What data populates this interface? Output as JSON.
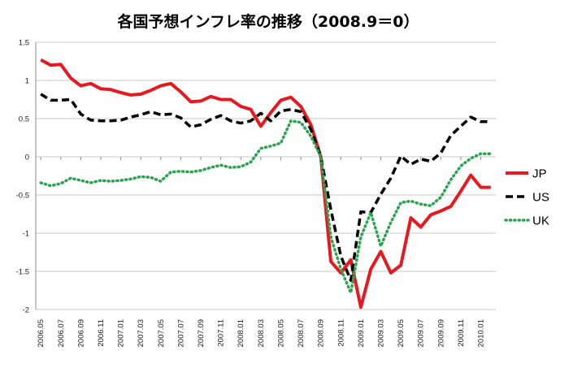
{
  "chart_data": {
    "type": "line",
    "title": "各国予想インフレ率の推移（2008.9＝0）",
    "xlabel": "",
    "ylabel": "",
    "ylim": [
      -2,
      1.5
    ],
    "yticks": [
      1.5,
      1,
      0.5,
      0,
      -0.5,
      -1,
      -1.5,
      -2
    ],
    "grid": "horizontal",
    "legend_position": "right",
    "x": [
      "2006.05",
      "2006.06",
      "2006.07",
      "2006.08",
      "2006.09",
      "2006.10",
      "2006.11",
      "2006.12",
      "2007.01",
      "2007.02",
      "2007.03",
      "2007.04",
      "2007.05",
      "2007.06",
      "2007.07",
      "2007.08",
      "2007.09",
      "2007.10",
      "2007.11",
      "2007.12",
      "2008.01",
      "2008.02",
      "2008.03",
      "2008.04",
      "2008.05",
      "2008.06",
      "2008.07",
      "2008.08",
      "2008.09",
      "2008.10",
      "2008.11",
      "2008.12",
      "2009.01",
      "2009.02",
      "2009.03",
      "2009.04",
      "2009.05",
      "2009.06",
      "2009.07",
      "2009.08",
      "2009.09",
      "2009.10",
      "2009.11",
      "2009.12",
      "2010.01",
      "2010.02"
    ],
    "x_tick_labels": [
      "2006.05",
      "2006.07",
      "2006.09",
      "2006.11",
      "2007.01",
      "2007.03",
      "2007.05",
      "2007.07",
      "2007.09",
      "2007.11",
      "2008.01",
      "2008.03",
      "2008.05",
      "2008.07",
      "2008.09",
      "2008.11",
      "2009.01",
      "2009.03",
      "2009.05",
      "2009.07",
      "2009.09",
      "2009.11",
      "2010.01"
    ],
    "series": [
      {
        "name": "JP",
        "color": "#e8191e",
        "style": "solid",
        "values": [
          1.27,
          1.2,
          1.21,
          1.03,
          0.93,
          0.96,
          0.89,
          0.88,
          0.84,
          0.81,
          0.82,
          0.87,
          0.93,
          0.96,
          0.85,
          0.72,
          0.73,
          0.79,
          0.75,
          0.75,
          0.66,
          0.62,
          0.4,
          0.58,
          0.74,
          0.78,
          0.66,
          0.42,
          0.0,
          -1.37,
          -1.52,
          -1.35,
          -1.97,
          -1.47,
          -1.24,
          -1.52,
          -1.42,
          -0.8,
          -0.92,
          -0.76,
          -0.71,
          -0.65,
          -0.45,
          -0.24,
          -0.4,
          -0.4
        ]
      },
      {
        "name": "US",
        "color": "#000000",
        "style": "dashed",
        "values": [
          0.82,
          0.74,
          0.74,
          0.75,
          0.56,
          0.48,
          0.47,
          0.47,
          0.48,
          0.52,
          0.55,
          0.59,
          0.55,
          0.56,
          0.51,
          0.39,
          0.42,
          0.49,
          0.54,
          0.47,
          0.44,
          0.47,
          0.57,
          0.47,
          0.6,
          0.62,
          0.59,
          0.36,
          0.0,
          -0.69,
          -1.3,
          -1.62,
          -0.72,
          -0.73,
          -0.49,
          -0.28,
          0.01,
          -0.1,
          -0.03,
          -0.06,
          0.05,
          0.28,
          0.4,
          0.52,
          0.46,
          0.46
        ]
      },
      {
        "name": "UK",
        "color": "#2aa54e",
        "style": "dotted",
        "values": [
          -0.34,
          -0.38,
          -0.35,
          -0.28,
          -0.31,
          -0.34,
          -0.31,
          -0.32,
          -0.31,
          -0.29,
          -0.26,
          -0.27,
          -0.32,
          -0.2,
          -0.19,
          -0.2,
          -0.18,
          -0.14,
          -0.11,
          -0.14,
          -0.13,
          -0.07,
          0.11,
          0.14,
          0.18,
          0.47,
          0.45,
          0.27,
          0.0,
          -1.05,
          -1.47,
          -1.78,
          -1.05,
          -0.73,
          -1.17,
          -0.86,
          -0.6,
          -0.58,
          -0.62,
          -0.64,
          -0.53,
          -0.3,
          -0.12,
          -0.02,
          0.04,
          0.04
        ]
      }
    ]
  }
}
